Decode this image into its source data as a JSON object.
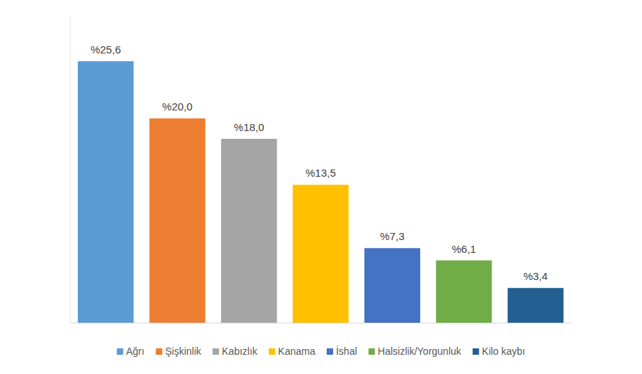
{
  "chart_data": {
    "type": "bar",
    "categories": [
      "Ağrı",
      "Şişkinlik",
      "Kabızlık",
      "Kanama",
      "İshal",
      "Halsizlik/Yorgunluk",
      "Kilo kaybı"
    ],
    "values": [
      25.6,
      20.0,
      18.0,
      13.5,
      7.3,
      6.1,
      3.4
    ],
    "value_labels": [
      "%25,6",
      "%20,0",
      "%18,0",
      "%13,5",
      "%7,3",
      "%6,1",
      "%3,4"
    ],
    "colors": [
      "#5b9bd5",
      "#ed7d31",
      "#a5a5a5",
      "#ffc000",
      "#4472c4",
      "#70ad47",
      "#255e91"
    ],
    "ylim": [
      0,
      30
    ],
    "data_labels": true,
    "tick_labels": false,
    "legend": "bottom"
  }
}
